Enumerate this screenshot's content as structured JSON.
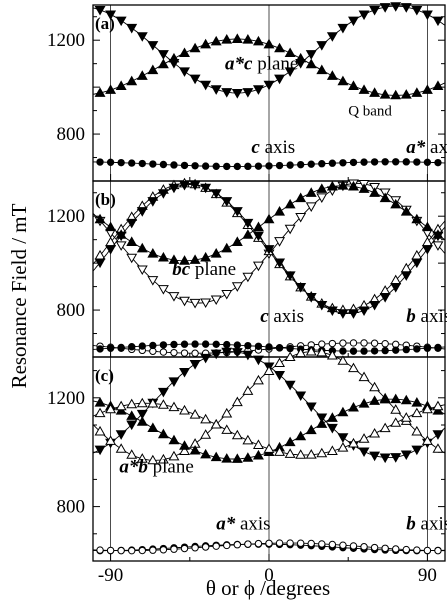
{
  "chart_data": {
    "type": "scatter",
    "ylabel": "Resonance Field / mT",
    "xlabel": "θ or ϕ /degrees",
    "xlim": [
      -100,
      100
    ],
    "x_ticks": [
      "-90",
      "0",
      "90"
    ],
    "x_tick_values": [
      -90,
      0,
      90
    ],
    "grid": "vertical guide lines at -90, 0, 90",
    "legend": "none",
    "panels": [
      {
        "id": "a",
        "label": "(a)",
        "ylim": [
          600,
          1350
        ],
        "y_ticks": [
          "800",
          "1200"
        ],
        "y_tick_values": [
          800,
          1200
        ],
        "annotations": [
          {
            "bold": "a*c",
            "text": " plane",
            "x": -25,
            "y": 1075
          },
          {
            "bold": "",
            "text": "Q band",
            "x": 45,
            "y": 880,
            "small": true
          },
          {
            "bold": "c",
            "text": " axis",
            "x": -10,
            "y": 720
          },
          {
            "bold": "a*",
            "text": " axis",
            "x": 78,
            "y": 720
          }
        ],
        "series": [
          {
            "marker": "tri-down",
            "filled": true,
            "center": 1160,
            "amp": 185,
            "phase": 72
          },
          {
            "marker": "tri-up",
            "filled": true,
            "center": 1085,
            "amp": 120,
            "phase": -18
          },
          {
            "marker": "circle",
            "filled": true,
            "center": 672,
            "amp": 10,
            "phase": 70
          }
        ]
      },
      {
        "id": "b",
        "label": "(b)",
        "ylim": [
          600,
          1350
        ],
        "y_ticks": [
          "800",
          "1200"
        ],
        "y_tick_values": [
          800,
          1200
        ],
        "annotations": [
          {
            "bold": "bc",
            "text": " plane",
            "x": -55,
            "y": 950
          },
          {
            "bold": "c",
            "text": " axis",
            "x": -5,
            "y": 750
          },
          {
            "bold": "b",
            "text": " axis",
            "x": 78,
            "y": 750
          }
        ],
        "series": [
          {
            "marker": "tri-down",
            "filled": false,
            "center": 1085,
            "amp": 255,
            "phase": 50
          },
          {
            "marker": "tri-up",
            "filled": false,
            "center": 1070,
            "amp": 270,
            "phase": -47
          },
          {
            "marker": "tri-up",
            "filled": true,
            "center": 1170,
            "amp": 160,
            "phase": 42
          },
          {
            "marker": "tri-down",
            "filled": true,
            "center": 1060,
            "amp": 275,
            "phase": -45
          },
          {
            "marker": "circle",
            "filled": false,
            "center": 638,
            "amp": 22,
            "phase": 50
          },
          {
            "marker": "circle",
            "filled": true,
            "center": 640,
            "amp": 15,
            "phase": -40
          }
        ]
      },
      {
        "id": "c",
        "label": "(c)",
        "ylim": [
          600,
          1350
        ],
        "y_ticks": [
          "800",
          "1200"
        ],
        "y_tick_values": [
          800,
          1200
        ],
        "annotations": [
          {
            "bold": "a*b",
            "text": " plane",
            "x": -85,
            "y": 925
          },
          {
            "bold": "a*",
            "text": " axis",
            "x": -30,
            "y": 715
          },
          {
            "bold": "b",
            "text": " axis",
            "x": 78,
            "y": 715
          }
        ],
        "series": [
          {
            "marker": "tri-down",
            "filled": true,
            "center": 1175,
            "amp": 195,
            "phase": -22
          },
          {
            "marker": "tri-up",
            "filled": false,
            "center": 1170,
            "amp": 200,
            "phase": 25
          },
          {
            "marker": "tri-up",
            "filled": true,
            "center": 1085,
            "amp": 110,
            "phase": 70
          },
          {
            "marker": "tri-up",
            "filled": false,
            "center": 1085,
            "amp": 95,
            "phase": -70
          },
          {
            "marker": "circle",
            "filled": true,
            "center": 650,
            "amp": 12,
            "phase": -5
          },
          {
            "marker": "circle",
            "filled": false,
            "center": 652,
            "amp": 14,
            "phase": 10
          }
        ]
      }
    ]
  }
}
